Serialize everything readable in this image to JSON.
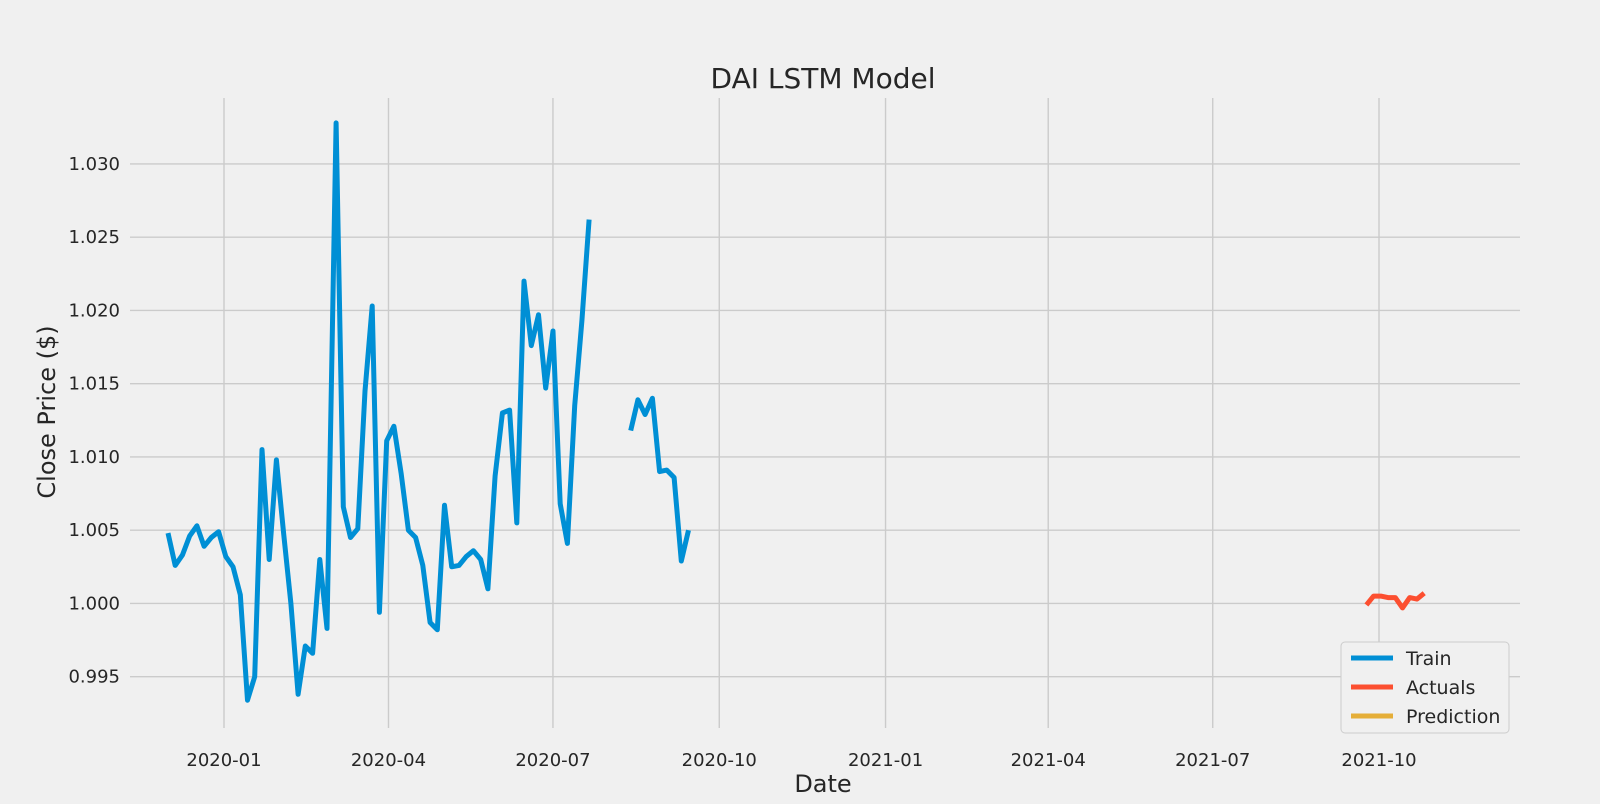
{
  "chart_data": {
    "type": "line",
    "title": "DAI LSTM Model",
    "xlabel": "Date",
    "ylabel": "Close Price ($)",
    "xlim": [
      "2019-11-10",
      "2021-12-18"
    ],
    "ylim": [
      0.9915,
      1.0345
    ],
    "x_ticks": [
      "2020-01",
      "2020-04",
      "2020-07",
      "2020-10",
      "2021-01",
      "2021-04",
      "2021-07",
      "2021-10"
    ],
    "y_ticks": [
      "0.995",
      "1.000",
      "1.005",
      "1.010",
      "1.015",
      "1.020",
      "1.025",
      "1.030"
    ],
    "grid": true,
    "legend_position": "bottom-right",
    "series": [
      {
        "name": "Train",
        "color": "#008fd5",
        "segments": [
          [
            [
              "2019-12-01",
              1.0048
            ],
            [
              "2019-12-05",
              1.0026
            ],
            [
              "2019-12-09",
              1.0033
            ],
            [
              "2019-12-13",
              1.0046
            ],
            [
              "2019-12-17",
              1.0053
            ],
            [
              "2019-12-21",
              1.0039
            ],
            [
              "2019-12-25",
              1.0045
            ],
            [
              "2019-12-29",
              1.0049
            ],
            [
              "2020-01-02",
              1.0032
            ],
            [
              "2020-01-06",
              1.0025
            ],
            [
              "2020-01-10",
              1.0006
            ],
            [
              "2020-01-14",
              0.9934
            ],
            [
              "2020-01-18",
              0.995
            ],
            [
              "2020-01-22",
              1.0105
            ],
            [
              "2020-01-26",
              1.003
            ],
            [
              "2020-01-30",
              1.0098
            ],
            [
              "2020-02-03",
              1.0048
            ],
            [
              "2020-02-07",
              1.0
            ],
            [
              "2020-02-11",
              0.9938
            ],
            [
              "2020-02-15",
              0.9971
            ],
            [
              "2020-02-19",
              0.9966
            ],
            [
              "2020-02-23",
              1.003
            ],
            [
              "2020-02-27",
              0.9983
            ],
            [
              "2020-03-03",
              1.0328
            ],
            [
              "2020-03-07",
              1.0066
            ],
            [
              "2020-03-11",
              1.0045
            ],
            [
              "2020-03-15",
              1.0051
            ],
            [
              "2020-03-19",
              1.0145
            ],
            [
              "2020-03-23",
              1.0203
            ],
            [
              "2020-03-27",
              0.9994
            ],
            [
              "2020-03-31",
              1.0111
            ],
            [
              "2020-04-04",
              1.0121
            ],
            [
              "2020-04-08",
              1.0089
            ],
            [
              "2020-04-12",
              1.005
            ],
            [
              "2020-04-16",
              1.0045
            ],
            [
              "2020-04-20",
              1.0026
            ],
            [
              "2020-04-24",
              0.9987
            ],
            [
              "2020-04-28",
              0.9982
            ],
            [
              "2020-05-02",
              1.0067
            ],
            [
              "2020-05-06",
              1.0025
            ],
            [
              "2020-05-10",
              1.0026
            ],
            [
              "2020-05-14",
              1.0032
            ],
            [
              "2020-05-18",
              1.0036
            ],
            [
              "2020-05-22",
              1.003
            ],
            [
              "2020-05-26",
              1.001
            ],
            [
              "2020-05-30",
              1.0087
            ],
            [
              "2020-06-03",
              1.013
            ],
            [
              "2020-06-07",
              1.0132
            ],
            [
              "2020-06-11",
              1.0055
            ],
            [
              "2020-06-15",
              1.022
            ],
            [
              "2020-06-19",
              1.0176
            ],
            [
              "2020-06-23",
              1.0197
            ],
            [
              "2020-06-27",
              1.0147
            ],
            [
              "2020-07-01",
              1.0186
            ],
            [
              "2020-07-05",
              1.0068
            ],
            [
              "2020-07-09",
              1.0041
            ],
            [
              "2020-07-13",
              1.0135
            ],
            [
              "2020-07-17",
              1.0193
            ],
            [
              "2020-07-21",
              1.0262
            ]
          ],
          [
            [
              "2020-08-13",
              1.0118
            ],
            [
              "2020-08-17",
              1.0139
            ],
            [
              "2020-08-21",
              1.0129
            ],
            [
              "2020-08-25",
              1.014
            ],
            [
              "2020-08-29",
              1.009
            ],
            [
              "2020-09-02",
              1.0091
            ],
            [
              "2020-09-06",
              1.0086
            ],
            [
              "2020-09-10",
              1.0029
            ],
            [
              "2020-09-14",
              1.005
            ]
          ]
        ]
      },
      {
        "name": "Actuals",
        "color": "#fc4f30",
        "segments": [
          [
            [
              "2021-09-24",
              0.9999
            ],
            [
              "2021-09-28",
              1.0005
            ],
            [
              "2021-10-02",
              1.0005
            ],
            [
              "2021-10-06",
              1.0004
            ],
            [
              "2021-10-10",
              1.0004
            ],
            [
              "2021-10-14",
              0.9997
            ],
            [
              "2021-10-18",
              1.0004
            ],
            [
              "2021-10-22",
              1.0003
            ],
            [
              "2021-10-26",
              1.0007
            ]
          ]
        ]
      },
      {
        "name": "Prediction",
        "color": "#e5ae38",
        "segments": []
      }
    ]
  }
}
